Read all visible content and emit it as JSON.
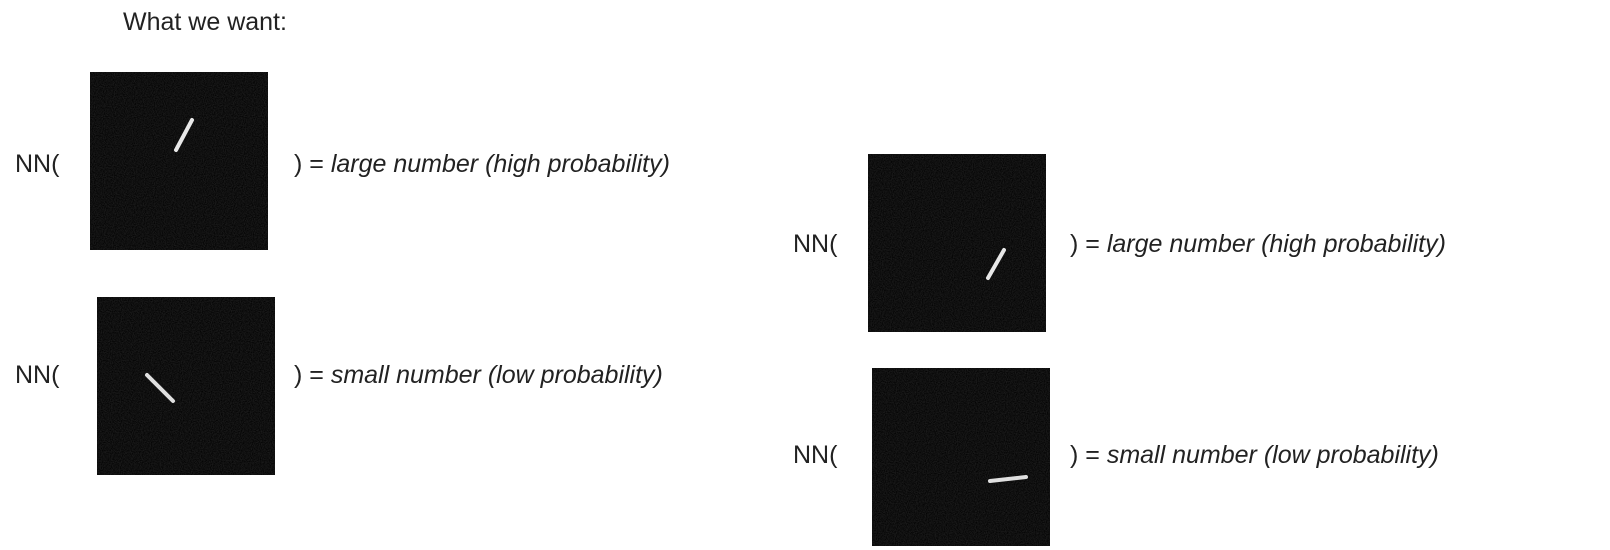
{
  "header": {
    "title": "What we want:"
  },
  "rows": [
    {
      "prefix": "NN(",
      "equals": ") =",
      "result": "large number (high probability)"
    },
    {
      "prefix": "NN(",
      "equals": ") =",
      "result": "small number (low probability)"
    },
    {
      "prefix": "NN(",
      "equals": ") =",
      "result": "large number (high probability)"
    },
    {
      "prefix": "NN(",
      "equals": ") =",
      "result": "small number (low probability)"
    }
  ]
}
